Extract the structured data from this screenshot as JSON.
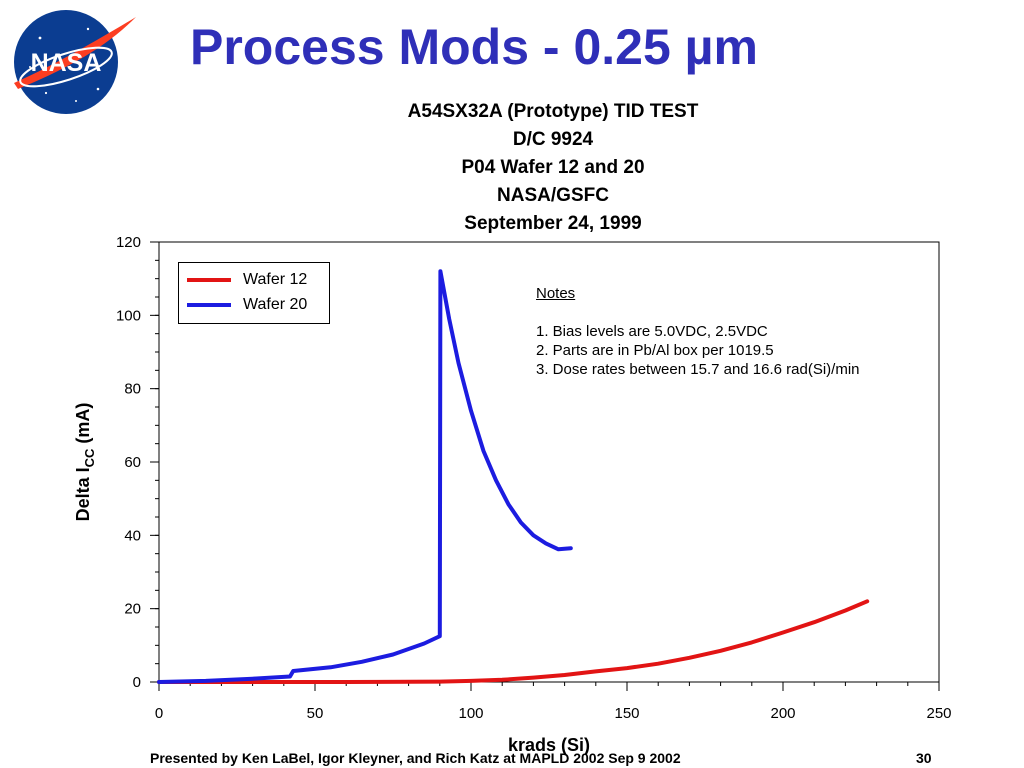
{
  "slide": {
    "title": "Process Mods - 0.25 µm",
    "logo_text": "NASA",
    "footer": "Presented by Ken LaBel, Igor Kleyner, and Rich Katz at MAPLD 2002 Sep 9 2002",
    "page_number": "30"
  },
  "colors": {
    "title": "#2f2fb8",
    "wafer12": "#e21414",
    "wafer20": "#1c1ce0",
    "logo_blue": "#0b3d91",
    "logo_red": "#fc3d21"
  },
  "chart_data": {
    "type": "line",
    "title_lines": [
      "A54SX32A (Prototype) TID TEST",
      "D/C 9924",
      "P04 Wafer 12 and 20",
      "NASA/GSFC",
      "September 24, 1999"
    ],
    "xlabel": "krads (Si)",
    "ylabel_main": "Delta I",
    "ylabel_sub": "CC",
    "ylabel_unit": " (mA)",
    "xlim": [
      0,
      250
    ],
    "ylim": [
      0,
      120
    ],
    "x_ticks": [
      "0",
      "50",
      "100",
      "150",
      "200",
      "250"
    ],
    "y_ticks": [
      "0",
      "20",
      "40",
      "60",
      "80",
      "100",
      "120"
    ],
    "grid": false,
    "legend_position": "top-left",
    "notes": {
      "heading": "Notes",
      "items": [
        "1. Bias levels are 5.0VDC, 2.5VDC",
        "2. Parts are in Pb/Al box per 1019.5",
        "3. Dose rates between 15.7 and 16.6 rad(Si)/min"
      ]
    },
    "series": [
      {
        "name": "Wafer 12",
        "points": [
          [
            0,
            0
          ],
          [
            30,
            0
          ],
          [
            60,
            0
          ],
          [
            90,
            0.1
          ],
          [
            100,
            0.3
          ],
          [
            110,
            0.6
          ],
          [
            120,
            1.2
          ],
          [
            130,
            1.9
          ],
          [
            140,
            2.9
          ],
          [
            150,
            3.8
          ],
          [
            160,
            5.0
          ],
          [
            170,
            6.6
          ],
          [
            180,
            8.5
          ],
          [
            190,
            10.8
          ],
          [
            200,
            13.5
          ],
          [
            210,
            16.3
          ],
          [
            220,
            19.5
          ],
          [
            227,
            22.0
          ]
        ]
      },
      {
        "name": "Wafer 20",
        "points": [
          [
            0,
            0
          ],
          [
            15,
            0.3
          ],
          [
            30,
            0.9
          ],
          [
            42,
            1.5
          ],
          [
            43,
            3.0
          ],
          [
            55,
            4.0
          ],
          [
            65,
            5.5
          ],
          [
            75,
            7.5
          ],
          [
            85,
            10.5
          ],
          [
            90,
            12.5
          ],
          [
            90.2,
            112
          ],
          [
            93,
            99
          ],
          [
            96,
            87
          ],
          [
            100,
            74
          ],
          [
            104,
            63
          ],
          [
            108,
            55
          ],
          [
            112,
            48.5
          ],
          [
            116,
            43.5
          ],
          [
            120,
            40
          ],
          [
            124,
            37.8
          ],
          [
            128,
            36.2
          ],
          [
            132,
            36.5
          ]
        ]
      }
    ]
  }
}
